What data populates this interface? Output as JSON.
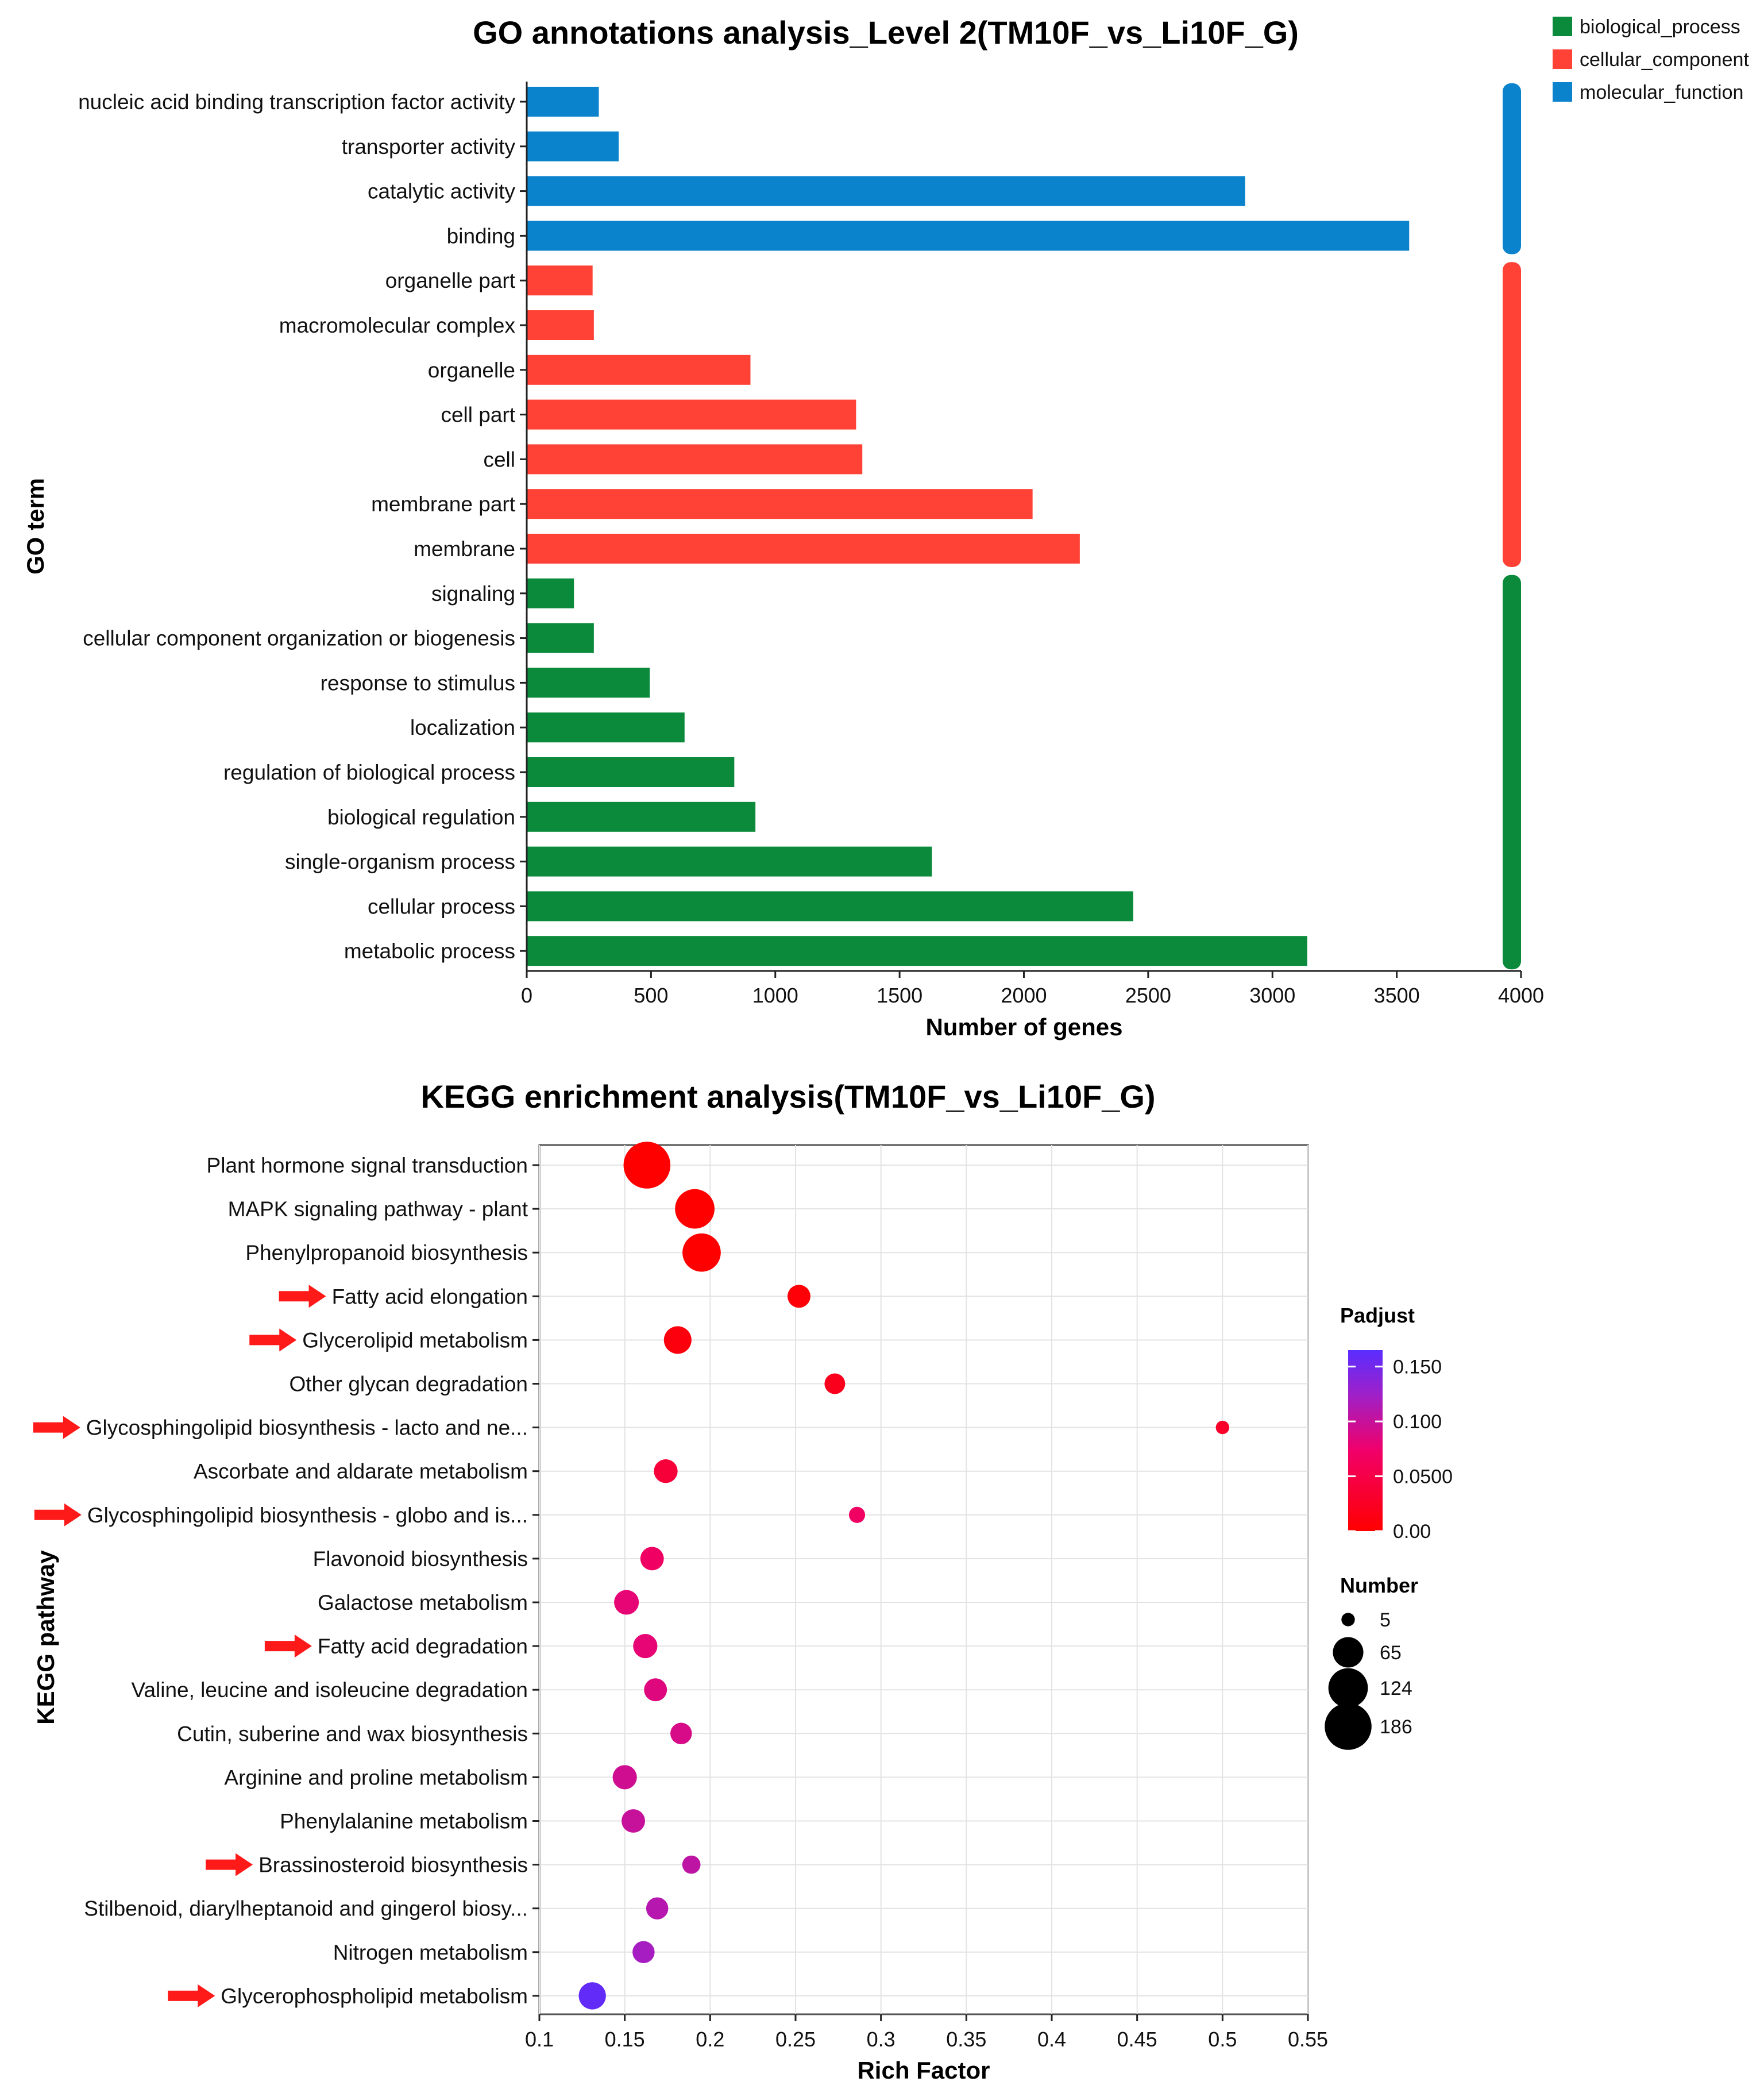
{
  "colors": {
    "biological_process": "#0b8a3c",
    "cellular_component": "#ff4136",
    "molecular_function": "#0a82cc",
    "arrow": "#ff1a1a",
    "padj_low": "#ff0000",
    "padj_high": "#5a2dff"
  },
  "chart_data": [
    {
      "type": "bar",
      "orientation": "horizontal",
      "title": "GO annotations analysis_Level 2(TM10F_vs_Li10F_G)",
      "xlabel": "Number of genes",
      "ylabel": "GO term",
      "xlim": [
        0,
        4000
      ],
      "xticks": [
        "0",
        "500",
        "1000",
        "1500",
        "2000",
        "2500",
        "3000",
        "3500",
        "4000"
      ],
      "legend": {
        "position": "top-right",
        "entries": [
          {
            "key": "biological_process",
            "label": "biological_process"
          },
          {
            "key": "cellular_component",
            "label": "cellular_component"
          },
          {
            "key": "molecular_function",
            "label": "molecular_function"
          }
        ]
      },
      "categories": [
        {
          "label": "nucleic acid binding transcription factor activity",
          "value": 290,
          "group": "molecular_function"
        },
        {
          "label": "transporter activity",
          "value": 370,
          "group": "molecular_function"
        },
        {
          "label": "catalytic activity",
          "value": 2890,
          "group": "molecular_function"
        },
        {
          "label": "binding",
          "value": 3550,
          "group": "molecular_function"
        },
        {
          "label": "organelle part",
          "value": 265,
          "group": "cellular_component"
        },
        {
          "label": "macromolecular complex",
          "value": 270,
          "group": "cellular_component"
        },
        {
          "label": "organelle",
          "value": 900,
          "group": "cellular_component"
        },
        {
          "label": "cell part",
          "value": 1325,
          "group": "cellular_component"
        },
        {
          "label": "cell",
          "value": 1350,
          "group": "cellular_component"
        },
        {
          "label": "membrane part",
          "value": 2035,
          "group": "cellular_component"
        },
        {
          "label": "membrane",
          "value": 2225,
          "group": "cellular_component"
        },
        {
          "label": "signaling",
          "value": 190,
          "group": "biological_process"
        },
        {
          "label": "cellular component organization or biogenesis",
          "value": 270,
          "group": "biological_process"
        },
        {
          "label": "response to stimulus",
          "value": 495,
          "group": "biological_process"
        },
        {
          "label": "localization",
          "value": 635,
          "group": "biological_process"
        },
        {
          "label": "regulation of biological process",
          "value": 835,
          "group": "biological_process"
        },
        {
          "label": "biological regulation",
          "value": 920,
          "group": "biological_process"
        },
        {
          "label": "single-organism process",
          "value": 1630,
          "group": "biological_process"
        },
        {
          "label": "cellular process",
          "value": 2440,
          "group": "biological_process"
        },
        {
          "label": "metabolic process",
          "value": 3140,
          "group": "biological_process"
        }
      ]
    },
    {
      "type": "scatter",
      "title": "KEGG enrichment analysis(TM10F_vs_Li10F_G)",
      "xlabel": "Rich Factor",
      "ylabel": "KEGG pathway",
      "xlim": [
        0.1,
        0.55
      ],
      "xticks": [
        "0.1",
        "0.15",
        "0.2",
        "0.25",
        "0.3",
        "0.35",
        "0.4",
        "0.45",
        "0.5",
        "0.55"
      ],
      "grid": true,
      "color_legend": {
        "title": "Padjust",
        "range": [
          0,
          0.165
        ],
        "ticks": [
          {
            "label": "0.150",
            "value": 0.15
          },
          {
            "label": "0.100",
            "value": 0.1
          },
          {
            "label": "0.0500",
            "value": 0.05
          },
          {
            "label": "0.00",
            "value": 0
          }
        ]
      },
      "size_legend": {
        "title": "Number",
        "entries": [
          {
            "label": "5",
            "value": 5
          },
          {
            "label": "65",
            "value": 65
          },
          {
            "label": "124",
            "value": 124
          },
          {
            "label": "186",
            "value": 186
          }
        ]
      },
      "points": [
        {
          "label": "Plant hormone signal transduction",
          "x": 0.163,
          "number": 186,
          "padj": 0.0,
          "arrow": false
        },
        {
          "label": "MAPK signaling pathway - plant",
          "x": 0.191,
          "number": 124,
          "padj": 0.0,
          "arrow": false
        },
        {
          "label": "Phenylpropanoid biosynthesis",
          "x": 0.195,
          "number": 115,
          "padj": 0.0,
          "arrow": false
        },
        {
          "label": "Fatty acid elongation",
          "x": 0.252,
          "number": 30,
          "padj": 0.005,
          "arrow": true
        },
        {
          "label": "Glycerolipid metabolism",
          "x": 0.181,
          "number": 50,
          "padj": 0.01,
          "arrow": true
        },
        {
          "label": "Other glycan degradation",
          "x": 0.273,
          "number": 22,
          "padj": 0.02,
          "arrow": false
        },
        {
          "label": "Glycosphingolipid biosynthesis - lacto and ne...",
          "x": 0.5,
          "number": 5,
          "padj": 0.03,
          "arrow": true
        },
        {
          "label": "Ascorbate and aldarate metabolism",
          "x": 0.174,
          "number": 33,
          "padj": 0.04,
          "arrow": false
        },
        {
          "label": "Glycosphingolipid biosynthesis - globo and is...",
          "x": 0.286,
          "number": 10,
          "padj": 0.07,
          "arrow": true
        },
        {
          "label": "Flavonoid biosynthesis",
          "x": 0.166,
          "number": 32,
          "padj": 0.07,
          "arrow": false
        },
        {
          "label": "Galactose metabolism",
          "x": 0.151,
          "number": 37,
          "padj": 0.08,
          "arrow": false
        },
        {
          "label": "Fatty acid degradation",
          "x": 0.162,
          "number": 35,
          "padj": 0.08,
          "arrow": true
        },
        {
          "label": "Valine, leucine and isoleucine degradation",
          "x": 0.168,
          "number": 30,
          "padj": 0.085,
          "arrow": false
        },
        {
          "label": "Cutin, suberine and wax biosynthesis",
          "x": 0.183,
          "number": 25,
          "padj": 0.09,
          "arrow": false
        },
        {
          "label": "Arginine and proline metabolism",
          "x": 0.15,
          "number": 35,
          "padj": 0.095,
          "arrow": false
        },
        {
          "label": "Phenylalanine metabolism",
          "x": 0.155,
          "number": 32,
          "padj": 0.1,
          "arrow": false
        },
        {
          "label": "Brassinosteroid biosynthesis",
          "x": 0.189,
          "number": 15,
          "padj": 0.105,
          "arrow": true
        },
        {
          "label": "Stilbenoid, diarylheptanoid and gingerol biosy...",
          "x": 0.169,
          "number": 27,
          "padj": 0.11,
          "arrow": false
        },
        {
          "label": "Nitrogen metabolism",
          "x": 0.161,
          "number": 27,
          "padj": 0.12,
          "arrow": false
        },
        {
          "label": "Glycerophospholipid metabolism",
          "x": 0.131,
          "number": 48,
          "padj": 0.16,
          "arrow": true
        }
      ]
    }
  ]
}
